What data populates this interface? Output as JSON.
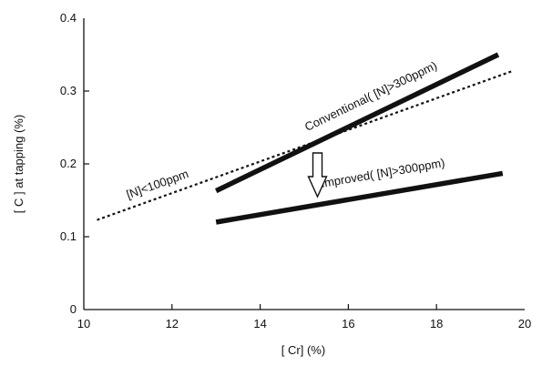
{
  "chart_data": {
    "type": "line",
    "title": "",
    "xlabel": "[ Cr]   (%)",
    "ylabel": "[ C ]  at tapping   (%)",
    "xlim": [
      10,
      20
    ],
    "ylim": [
      0,
      0.4
    ],
    "x_ticks": [
      10,
      12,
      14,
      16,
      18,
      20
    ],
    "y_ticks": [
      0,
      0.1,
      0.2,
      0.3,
      0.4
    ],
    "x_tick_labels": [
      "10",
      "12",
      "14",
      "16",
      "18",
      "20"
    ],
    "y_tick_labels": [
      "0",
      "0.1",
      "0.2",
      "0.3",
      "0.4"
    ],
    "grid": false,
    "series": [
      {
        "name": "Conventional( [N]>300ppm)",
        "style": "solid-thick",
        "x": [
          13.0,
          19.4
        ],
        "y": [
          0.163,
          0.35
        ]
      },
      {
        "name": "Improved( [N]>300ppm)",
        "style": "solid-thick",
        "x": [
          13.0,
          19.5
        ],
        "y": [
          0.12,
          0.187
        ]
      },
      {
        "name": "[N]<100ppm",
        "style": "dotted",
        "x": [
          10.3,
          19.7
        ],
        "y": [
          0.123,
          0.327
        ]
      }
    ],
    "annotations": [
      {
        "text": "Conventional( [N]>300ppm)",
        "series": 0
      },
      {
        "text": "Improved( [N]>300ppm)",
        "series": 1
      },
      {
        "text": "[N]<100ppm",
        "series": 2
      },
      {
        "kind": "down-arrow",
        "x": 15.3,
        "y_from": 0.215,
        "y_to": 0.155
      }
    ],
    "colors": {
      "line": "#111111",
      "axis": "#111111"
    }
  }
}
